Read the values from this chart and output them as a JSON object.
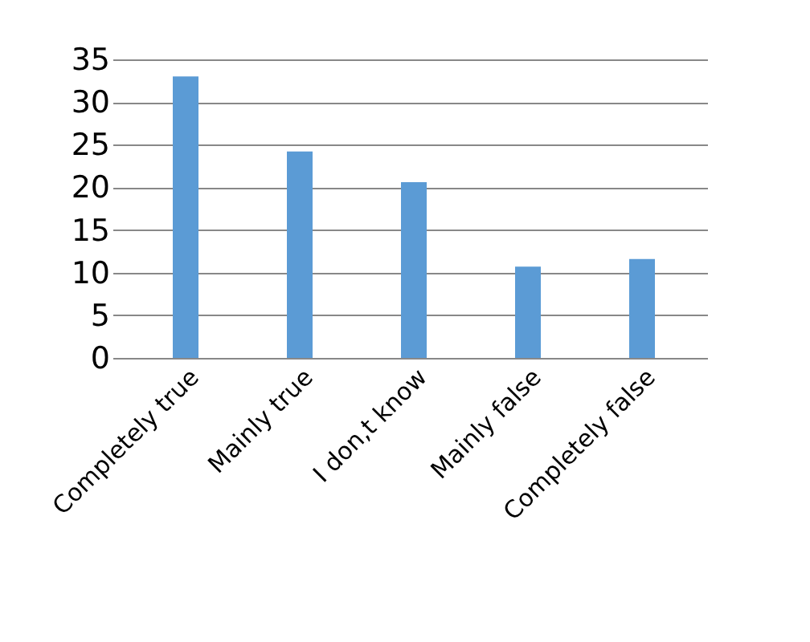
{
  "chart_data": {
    "type": "bar",
    "categories": [
      "Completely true",
      "Mainly true",
      "I don‚t know",
      "Mainly false",
      "Completely false"
    ],
    "values": [
      33,
      24.2,
      20.6,
      10.7,
      11.6
    ],
    "color": "#5b9bd5",
    "ylim": [
      0,
      35
    ],
    "yticks": [
      0,
      5,
      10,
      15,
      20,
      25,
      30,
      35
    ],
    "grid": "y"
  }
}
